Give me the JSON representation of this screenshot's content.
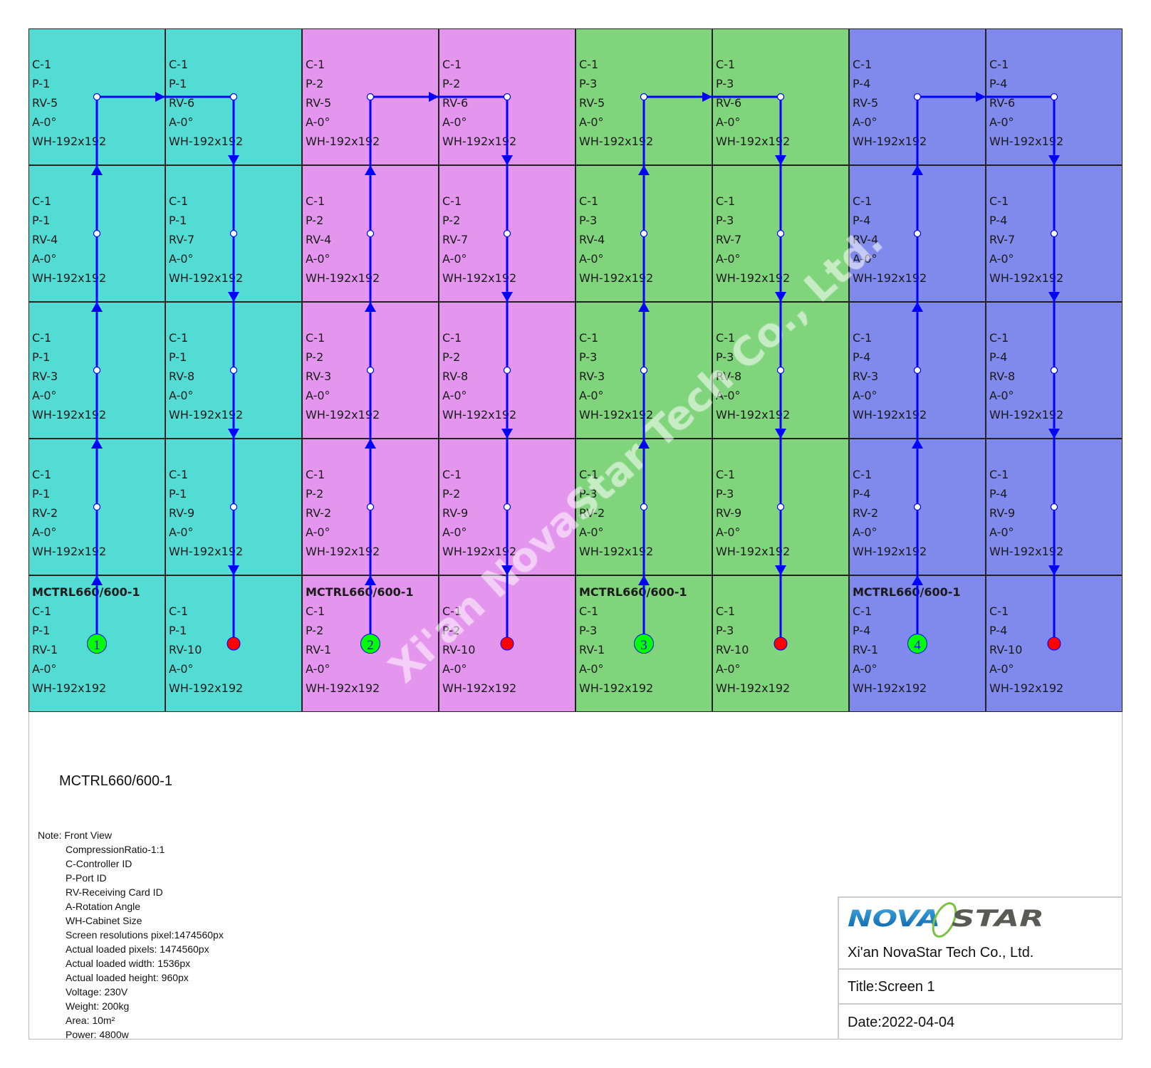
{
  "colors": {
    "group_fills": [
      "#52dcd4",
      "#e495ee",
      "#80d47c",
      "#8089ec"
    ],
    "flow_line": "#0000ff",
    "start_marker": "#00ff00",
    "end_marker": "#ff0000"
  },
  "grid": {
    "controller_label": "MCTRL660/600-1",
    "columns": [
      {
        "cells": [
          [
            "C-1",
            "P-1",
            "RV-5",
            "A-0°",
            "WH-192x192"
          ],
          [
            "C-1",
            "P-1",
            "RV-4",
            "A-0°",
            "WH-192x192"
          ],
          [
            "C-1",
            "P-1",
            "RV-3",
            "A-0°",
            "WH-192x192"
          ],
          [
            "C-1",
            "P-1",
            "RV-2",
            "A-0°",
            "WH-192x192"
          ],
          [
            "C-1",
            "P-1",
            "RV-1",
            "A-0°",
            "WH-192x192"
          ]
        ]
      },
      {
        "cells": [
          [
            "C-1",
            "P-1",
            "RV-6",
            "A-0°",
            "WH-192x192"
          ],
          [
            "C-1",
            "P-1",
            "RV-7",
            "A-0°",
            "WH-192x192"
          ],
          [
            "C-1",
            "P-1",
            "RV-8",
            "A-0°",
            "WH-192x192"
          ],
          [
            "C-1",
            "P-1",
            "RV-9",
            "A-0°",
            "WH-192x192"
          ],
          [
            "C-1",
            "P-1",
            "RV-10",
            "A-0°",
            "WH-192x192"
          ]
        ]
      },
      {
        "cells": [
          [
            "C-1",
            "P-2",
            "RV-5",
            "A-0°",
            "WH-192x192"
          ],
          [
            "C-1",
            "P-2",
            "RV-4",
            "A-0°",
            "WH-192x192"
          ],
          [
            "C-1",
            "P-2",
            "RV-3",
            "A-0°",
            "WH-192x192"
          ],
          [
            "C-1",
            "P-2",
            "RV-2",
            "A-0°",
            "WH-192x192"
          ],
          [
            "C-1",
            "P-2",
            "RV-1",
            "A-0°",
            "WH-192x192"
          ]
        ]
      },
      {
        "cells": [
          [
            "C-1",
            "P-2",
            "RV-6",
            "A-0°",
            "WH-192x192"
          ],
          [
            "C-1",
            "P-2",
            "RV-7",
            "A-0°",
            "WH-192x192"
          ],
          [
            "C-1",
            "P-2",
            "RV-8",
            "A-0°",
            "WH-192x192"
          ],
          [
            "C-1",
            "P-2",
            "RV-9",
            "A-0°",
            "WH-192x192"
          ],
          [
            "C-1",
            "P-2",
            "RV-10",
            "A-0°",
            "WH-192x192"
          ]
        ]
      },
      {
        "cells": [
          [
            "C-1",
            "P-3",
            "RV-5",
            "A-0°",
            "WH-192x192"
          ],
          [
            "C-1",
            "P-3",
            "RV-4",
            "A-0°",
            "WH-192x192"
          ],
          [
            "C-1",
            "P-3",
            "RV-3",
            "A-0°",
            "WH-192x192"
          ],
          [
            "C-1",
            "P-3",
            "RV-2",
            "A-0°",
            "WH-192x192"
          ],
          [
            "C-1",
            "P-3",
            "RV-1",
            "A-0°",
            "WH-192x192"
          ]
        ]
      },
      {
        "cells": [
          [
            "C-1",
            "P-3",
            "RV-6",
            "A-0°",
            "WH-192x192"
          ],
          [
            "C-1",
            "P-3",
            "RV-7",
            "A-0°",
            "WH-192x192"
          ],
          [
            "C-1",
            "P-3",
            "RV-8",
            "A-0°",
            "WH-192x192"
          ],
          [
            "C-1",
            "P-3",
            "RV-9",
            "A-0°",
            "WH-192x192"
          ],
          [
            "C-1",
            "P-3",
            "RV-10",
            "A-0°",
            "WH-192x192"
          ]
        ]
      },
      {
        "cells": [
          [
            "C-1",
            "P-4",
            "RV-5",
            "A-0°",
            "WH-192x192"
          ],
          [
            "C-1",
            "P-4",
            "RV-4",
            "A-0°",
            "WH-192x192"
          ],
          [
            "C-1",
            "P-4",
            "RV-3",
            "A-0°",
            "WH-192x192"
          ],
          [
            "C-1",
            "P-4",
            "RV-2",
            "A-0°",
            "WH-192x192"
          ],
          [
            "C-1",
            "P-4",
            "RV-1",
            "A-0°",
            "WH-192x192"
          ]
        ]
      },
      {
        "cells": [
          [
            "C-1",
            "P-4",
            "RV-6",
            "A-0°",
            "WH-192x192"
          ],
          [
            "C-1",
            "P-4",
            "RV-7",
            "A-0°",
            "WH-192x192"
          ],
          [
            "C-1",
            "P-4",
            "RV-8",
            "A-0°",
            "WH-192x192"
          ],
          [
            "C-1",
            "P-4",
            "RV-9",
            "A-0°",
            "WH-192x192"
          ],
          [
            "C-1",
            "P-4",
            "RV-10",
            "A-0°",
            "WH-192x192"
          ]
        ]
      }
    ],
    "port_numbers": [
      "1",
      "2",
      "3",
      "4"
    ]
  },
  "watermark": "Xi'an NovaStar Tech Co., Ltd.",
  "controller_caption": "MCTRL660/600-1",
  "notes": {
    "header": "Note: Front View",
    "lines": [
      "CompressionRatio-1:1",
      "C-Controller ID",
      "P-Port ID",
      "RV-Receiving Card ID",
      "A-Rotation Angle",
      "WH-Cabinet Size",
      "Screen resolutions pixel:1474560px",
      "Actual loaded pixels: 1474560px",
      "Actual loaded width: 1536px",
      "Actual loaded height: 960px",
      "Voltage: 230V",
      "Weight: 200kg",
      "Area: 10m²",
      "Power: 4800w"
    ]
  },
  "title_block": {
    "logo_text_left": "NOVA",
    "logo_text_right": "STAR",
    "company": "Xi'an NovaStar Tech Co., Ltd.",
    "title": "Title:Screen 1",
    "date": "Date:2022-04-04"
  }
}
